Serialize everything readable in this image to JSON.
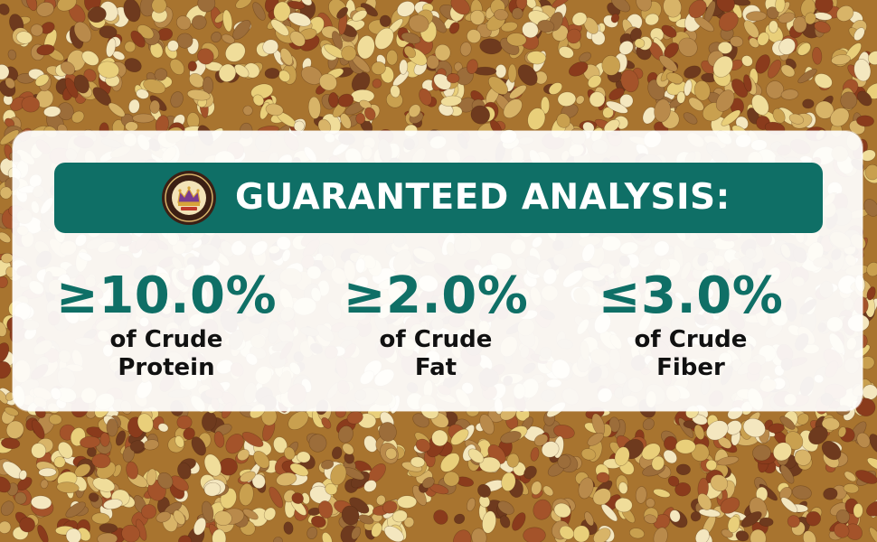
{
  "colors": {
    "accent": "#0f6f66",
    "panel": "#ffffff",
    "label_text": "#111111",
    "background_grain": "#a8742f"
  },
  "background": {
    "icon": "mixed-grain-photo"
  },
  "banner": {
    "title": "GUARANTEED ANALYSIS:",
    "logo_icon": "crown-badge-icon"
  },
  "stats": [
    {
      "value": "≥10.0%",
      "label_line1": "of Crude",
      "label_line2": "Protein"
    },
    {
      "value": "≥2.0%",
      "label_line1": "of Crude",
      "label_line2": "Fat"
    },
    {
      "value": "≤3.0%",
      "label_line1": "of Crude",
      "label_line2": "Fiber"
    }
  ]
}
